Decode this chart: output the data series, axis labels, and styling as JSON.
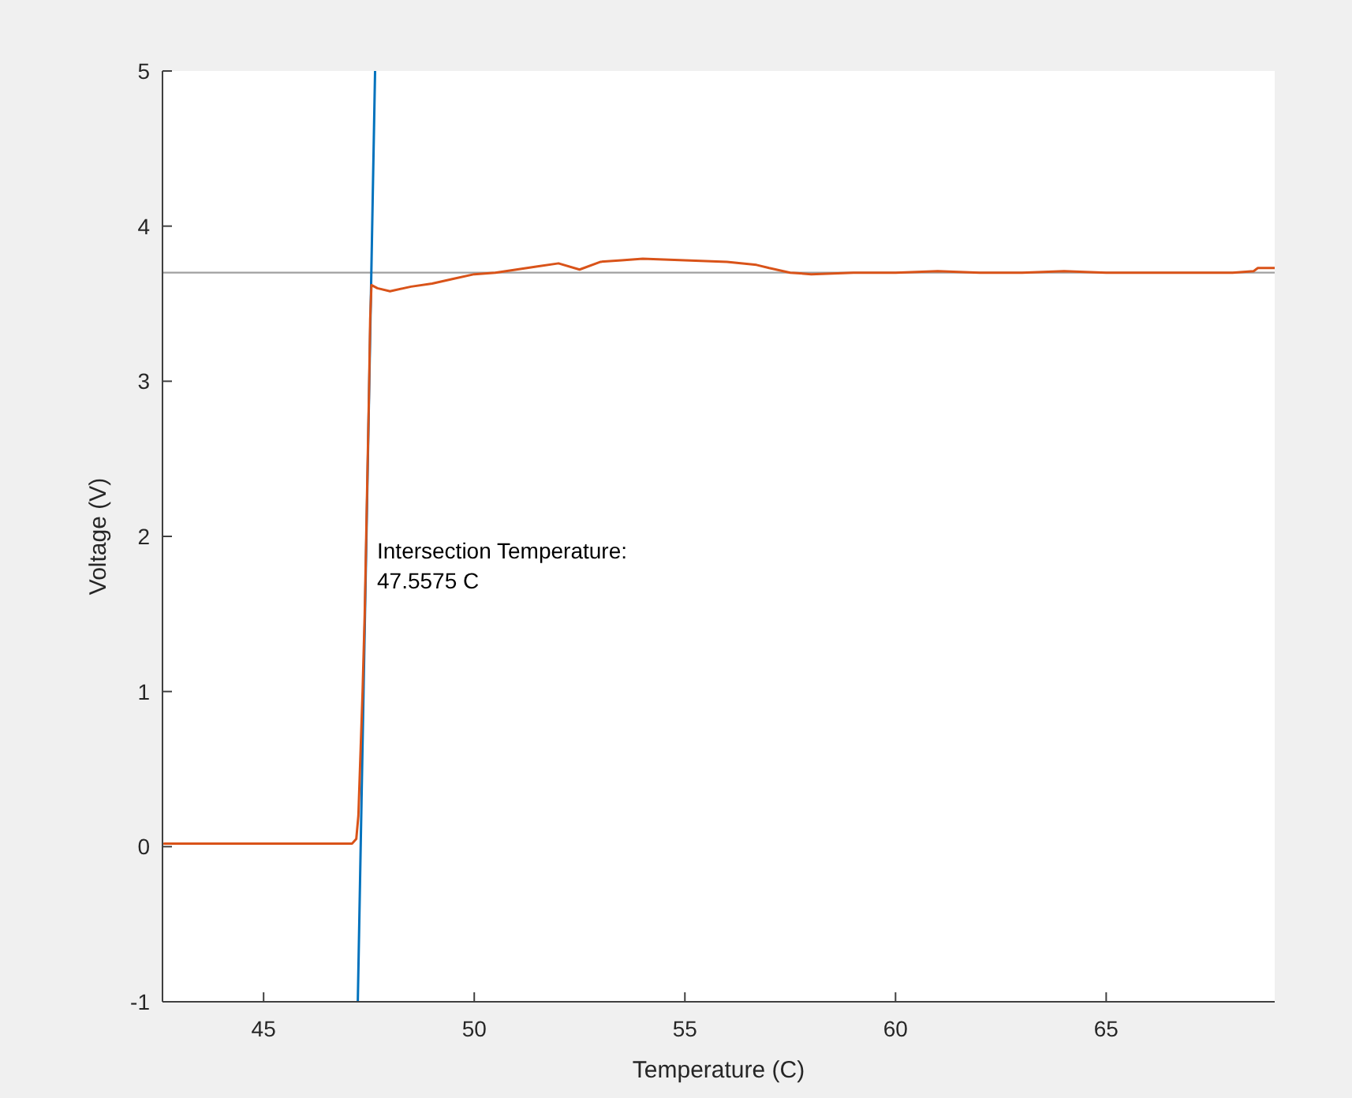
{
  "chart_data": {
    "type": "line",
    "xlabel": "Temperature (C)",
    "ylabel": "Voltage (V)",
    "xlim": [
      42.6,
      69
    ],
    "ylim": [
      -1,
      5
    ],
    "xticks": [
      45,
      50,
      55,
      60,
      65
    ],
    "yticks": [
      -1,
      0,
      1,
      2,
      3,
      4,
      5
    ],
    "grid": false,
    "series": [
      {
        "color": "#0072bd",
        "x": [
          47.236,
          47.646
        ],
        "values": [
          -1,
          5
        ]
      },
      {
        "color": "#d95319",
        "x": [
          42.64,
          47.1,
          47.2,
          47.25,
          47.3,
          47.35,
          47.4,
          47.45,
          47.5,
          47.53,
          47.56,
          47.7,
          48,
          48.5,
          49,
          49.5,
          50,
          50.5,
          51,
          51.5,
          52,
          52.5,
          53,
          53.5,
          54,
          55,
          56,
          56.7,
          57,
          57.5,
          58,
          59,
          60,
          61,
          62,
          63,
          64,
          65,
          66,
          67,
          68,
          68.5,
          68.6,
          69
        ],
        "values": [
          0.02,
          0.02,
          0.05,
          0.2,
          0.6,
          1.0,
          1.5,
          2.2,
          2.9,
          3.4,
          3.62,
          3.6,
          3.58,
          3.61,
          3.63,
          3.66,
          3.69,
          3.7,
          3.72,
          3.74,
          3.76,
          3.72,
          3.77,
          3.78,
          3.79,
          3.78,
          3.77,
          3.75,
          3.73,
          3.7,
          3.69,
          3.7,
          3.7,
          3.71,
          3.7,
          3.7,
          3.71,
          3.7,
          3.7,
          3.7,
          3.7,
          3.71,
          3.73,
          3.73
        ]
      }
    ],
    "ref_lines": [
      {
        "axis": "y",
        "value": 3.7,
        "color": "#a0a0a0"
      }
    ],
    "annotations": [
      "Intersection Temperature:\n47.5575 C"
    ]
  }
}
